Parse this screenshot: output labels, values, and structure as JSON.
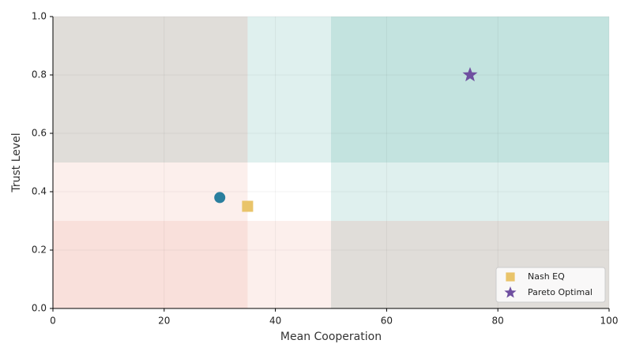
{
  "chart_data": {
    "type": "scatter",
    "xlabel": "Mean Cooperation",
    "ylabel": "Trust Level",
    "xlim": [
      0,
      100
    ],
    "ylim": [
      0,
      1
    ],
    "xticks": [
      0,
      20,
      40,
      60,
      80,
      100
    ],
    "yticks": [
      {
        "value": 0,
        "label": "0.0"
      },
      0.2,
      0.4,
      0.6,
      0.8,
      {
        "value": 1,
        "label": "1.0"
      }
    ],
    "grid": true,
    "legend": "lower right",
    "regions": [
      {
        "x": [
          0,
          35
        ],
        "y": [
          0.5,
          1
        ],
        "color": "#e0ddd9"
      },
      {
        "x": [
          50,
          100
        ],
        "y": [
          0,
          0.3
        ],
        "color": "#e0ddd9"
      },
      {
        "x": [
          35,
          100
        ],
        "y": [
          0.5,
          1
        ],
        "color": "#2a9d8f26"
      },
      {
        "x": [
          50,
          100
        ],
        "y": [
          0.3,
          1
        ],
        "color": "#2a9d8f26"
      },
      {
        "x": [
          0,
          35
        ],
        "y": [
          0,
          0.5
        ],
        "color": "#e76f511c"
      },
      {
        "x": [
          0,
          50
        ],
        "y": [
          0,
          0.3
        ],
        "color": "#e76f511c"
      }
    ],
    "series": [
      {
        "color": "#2a7f9e",
        "marker": "circle",
        "x": [
          30
        ],
        "values": [
          0.38
        ]
      },
      {
        "name": "Nash EQ",
        "color": "#e9c46a",
        "marker": "square",
        "x": [
          35
        ],
        "values": [
          0.35
        ]
      },
      {
        "name": "Pareto Optimal",
        "color": "#6f4fa0",
        "marker": "star",
        "x": [
          75
        ],
        "values": [
          0.8
        ]
      }
    ]
  }
}
